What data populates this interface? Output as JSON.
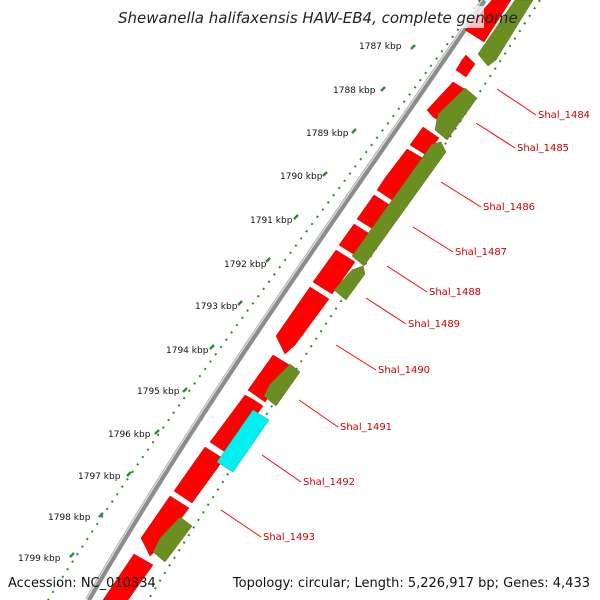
{
  "header": {
    "title": "Shewanella halifaxensis HAW-EB4, complete genome"
  },
  "footer": {
    "accession": "Accession: NC_010334",
    "summary": "Topology: circular; Length: 5,226,917 bp; Genes: 4,433"
  },
  "colors": {
    "forward_cds": "#ff0000",
    "reverse_cds": "#6b8e23",
    "highlight_cds": "#00f0f0",
    "backbone": "#8c8c8c",
    "ticks": "#2e8b2e",
    "label": "#cc0000"
  },
  "ticks": [
    {
      "label": "1787 kbp"
    },
    {
      "label": "1788 kbp"
    },
    {
      "label": "1789 kbp"
    },
    {
      "label": "1790 kbp"
    },
    {
      "label": "1791 kbp"
    },
    {
      "label": "1792 kbp"
    },
    {
      "label": "1793 kbp"
    },
    {
      "label": "1794 kbp"
    },
    {
      "label": "1795 kbp"
    },
    {
      "label": "1796 kbp"
    },
    {
      "label": "1797 kbp"
    },
    {
      "label": "1798 kbp"
    },
    {
      "label": "1799 kbp"
    }
  ],
  "genes": [
    {
      "label": "Shal_1484"
    },
    {
      "label": "Shal_1485"
    },
    {
      "label": "Shal_1486"
    },
    {
      "label": "Shal_1487"
    },
    {
      "label": "Shal_1488"
    },
    {
      "label": "Shal_1489"
    },
    {
      "label": "Shal_1490"
    },
    {
      "label": "Shal_1491"
    },
    {
      "label": "Shal_1492"
    },
    {
      "label": "Shal_1493"
    }
  ]
}
